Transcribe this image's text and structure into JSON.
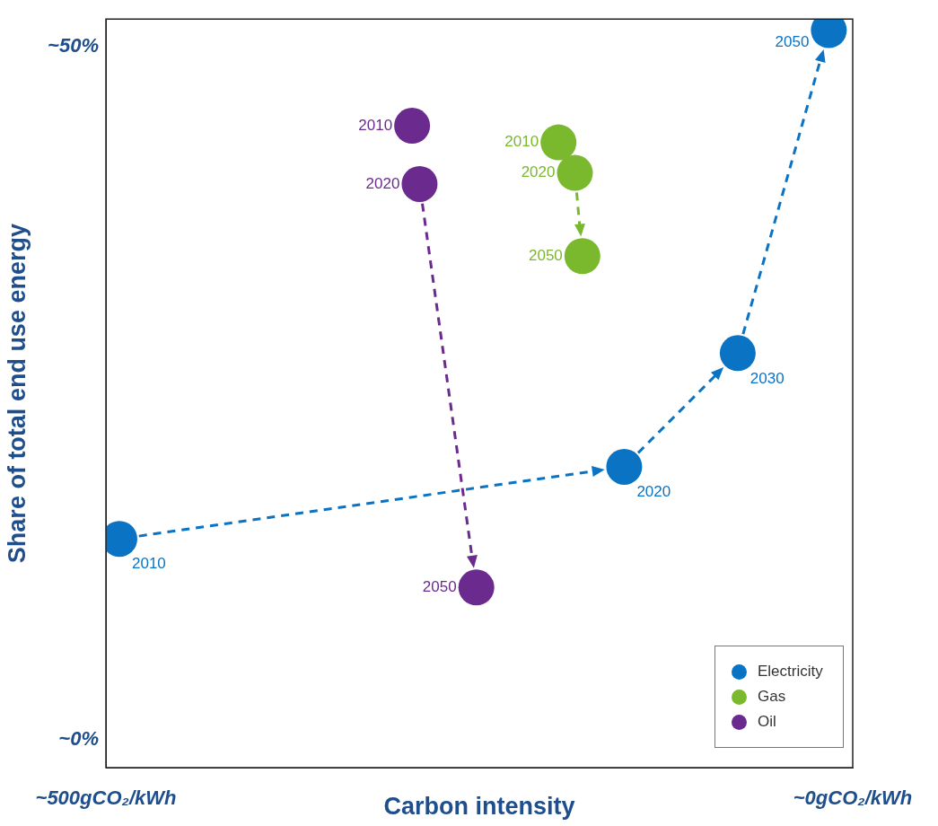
{
  "chart_data": {
    "type": "scatter",
    "xlabel": "Carbon intensity",
    "ylabel": "Share of total end use energy",
    "xlim": [
      500,
      0
    ],
    "ylim": [
      -2,
      52
    ],
    "xticks": [
      {
        "value": 500,
        "label": "~500gCO₂/kWh"
      },
      {
        "value": 0,
        "label": "~0gCO₂/kWh"
      }
    ],
    "yticks": [
      {
        "value": 0,
        "label": "~0%"
      },
      {
        "value": 50,
        "label": "~50%"
      }
    ],
    "grid": false,
    "legend": "bottom right",
    "marker": "circle",
    "line_style": "dashed",
    "series": [
      {
        "name": "Electricity",
        "color": "#0a73c4",
        "x": [
          491,
          153,
          77,
          16
        ],
        "values": [
          14.5,
          19.7,
          27.9,
          51.2
        ]
      },
      {
        "name": "Gas",
        "color": "#7ab82e",
        "x": [
          197,
          186,
          181
        ],
        "values": [
          43.1,
          40.9,
          34.9
        ]
      },
      {
        "name": "Oil",
        "color": "#6b2a8e",
        "x": [
          295,
          290,
          252
        ],
        "values": [
          44.3,
          40.1,
          11.0
        ]
      }
    ],
    "annotations": [
      {
        "text": "2010",
        "x": 491,
        "y": 14.5
      },
      {
        "text": "2020",
        "x": 153,
        "y": 19.7
      },
      {
        "text": "2030",
        "x": 77,
        "y": 27.9
      },
      {
        "text": "2050",
        "x": 16,
        "y": 51.2
      },
      {
        "text": "2010",
        "x": 197,
        "y": 43.1
      },
      {
        "text": "2020",
        "x": 186,
        "y": 40.9
      },
      {
        "text": "2050",
        "x": 181,
        "y": 34.9
      },
      {
        "text": "2010",
        "x": 295,
        "y": 44.3
      },
      {
        "text": "2020",
        "x": 290,
        "y": 40.1
      },
      {
        "text": "2050",
        "x": 252,
        "y": 11.0
      }
    ]
  }
}
